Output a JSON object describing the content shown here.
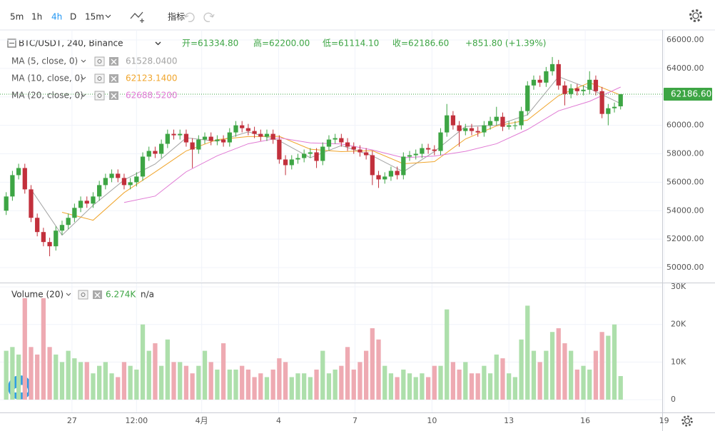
{
  "toolbar": {
    "intervals": [
      "5m",
      "1h",
      "4h",
      "D",
      "15m"
    ],
    "active_interval_index": 2,
    "indicators": "指标"
  },
  "chart_data": {
    "type": "candlestick",
    "title": "BTC/USDT, 240, Binance",
    "header_labels": [
      "开=61334.80",
      "高=62200.00",
      "低=61114.10",
      "收=62186.60",
      "+851.80 (+1.39%)"
    ],
    "xlim": [
      -1,
      105.7
    ],
    "xticks": [
      {
        "value": 10.6,
        "label": "27"
      },
      {
        "value": 21,
        "label": "12:00"
      },
      {
        "value": 31.5,
        "label": "4月"
      },
      {
        "value": 43.9,
        "label": "4"
      },
      {
        "value": 56.2,
        "label": "7"
      },
      {
        "value": 68.6,
        "label": "10"
      },
      {
        "value": 81,
        "label": "13"
      },
      {
        "value": 93.3,
        "label": "16"
      },
      {
        "value": 106,
        "label": "19"
      }
    ],
    "ylim": [
      49000,
      66700
    ],
    "yticks": [
      {
        "value": 50000,
        "label": "50000.00"
      },
      {
        "value": 52000,
        "label": "52000.00"
      },
      {
        "value": 54000,
        "label": "54000.00"
      },
      {
        "value": 56000,
        "label": "56000.00"
      },
      {
        "value": 58000,
        "label": "58000.00"
      },
      {
        "value": 60000,
        "label": "60000.00"
      },
      {
        "value": 62000,
        "label": "62000.00"
      },
      {
        "value": 64000,
        "label": "64000.00"
      },
      {
        "value": 66000,
        "label": "66000.00"
      }
    ],
    "grid": true,
    "up_color": "#3da544",
    "down_color": "#c2303c",
    "candles": [
      [
        54000,
        55300,
        53700,
        55000
      ],
      [
        55000,
        56800,
        54700,
        56500
      ],
      [
        56500,
        57300,
        56200,
        57000
      ],
      [
        57000,
        57300,
        55200,
        55500
      ],
      [
        55500,
        55800,
        53200,
        53500
      ],
      [
        53500,
        53800,
        52200,
        52500
      ],
      [
        52500,
        52800,
        51500,
        51800
      ],
      [
        51800,
        52100,
        50800,
        51500
      ],
      [
        51500,
        52900,
        51200,
        52600
      ],
      [
        52600,
        53300,
        52300,
        53000
      ],
      [
        53000,
        53800,
        52700,
        53500
      ],
      [
        53500,
        54500,
        53200,
        54200
      ],
      [
        54200,
        55000,
        53900,
        54700
      ],
      [
        54700,
        55000,
        54200,
        54500
      ],
      [
        54500,
        55300,
        54200,
        55000
      ],
      [
        55000,
        56100,
        54700,
        55800
      ],
      [
        55800,
        56600,
        55500,
        56300
      ],
      [
        56300,
        56900,
        56000,
        56600
      ],
      [
        56600,
        56900,
        56000,
        56300
      ],
      [
        56300,
        56600,
        55500,
        55800
      ],
      [
        55800,
        56300,
        55500,
        56000
      ],
      [
        56000,
        56700,
        55700,
        56400
      ],
      [
        56400,
        58100,
        56100,
        57800
      ],
      [
        57800,
        58500,
        57500,
        58200
      ],
      [
        58200,
        58500,
        57700,
        58000
      ],
      [
        58000,
        59000,
        57700,
        58700
      ],
      [
        58700,
        59700,
        58400,
        59400
      ],
      [
        59400,
        59700,
        59000,
        59300
      ],
      [
        59300,
        59700,
        59000,
        59400
      ],
      [
        59400,
        59700,
        58500,
        58800
      ],
      [
        58800,
        59100,
        57000,
        58300
      ],
      [
        58300,
        59300,
        58000,
        59000
      ],
      [
        59000,
        59500,
        58700,
        59200
      ],
      [
        59200,
        59500,
        58600,
        58900
      ],
      [
        58900,
        59300,
        58600,
        59000
      ],
      [
        59000,
        59300,
        58500,
        58800
      ],
      [
        58800,
        59800,
        58500,
        59500
      ],
      [
        59500,
        60300,
        59200,
        60000
      ],
      [
        60000,
        60300,
        59500,
        59800
      ],
      [
        59800,
        60100,
        59300,
        59600
      ],
      [
        59600,
        59900,
        59100,
        59400
      ],
      [
        59400,
        59700,
        58900,
        59200
      ],
      [
        59200,
        59700,
        58900,
        59400
      ],
      [
        59400,
        59700,
        58700,
        59000
      ],
      [
        59000,
        59300,
        57300,
        57600
      ],
      [
        57600,
        57900,
        56500,
        57200
      ],
      [
        57200,
        57900,
        56900,
        57600
      ],
      [
        57600,
        58000,
        57300,
        57700
      ],
      [
        57700,
        58300,
        57400,
        58000
      ],
      [
        58000,
        58400,
        57700,
        58100
      ],
      [
        58100,
        58400,
        57000,
        57500
      ],
      [
        57500,
        58800,
        57200,
        58500
      ],
      [
        58500,
        59300,
        58200,
        59000
      ],
      [
        59000,
        59400,
        58700,
        59100
      ],
      [
        59100,
        59400,
        58500,
        58800
      ],
      [
        58800,
        59100,
        58200,
        58500
      ],
      [
        58500,
        58800,
        58000,
        58300
      ],
      [
        58300,
        58600,
        57800,
        58100
      ],
      [
        58100,
        58400,
        57600,
        57900
      ],
      [
        57900,
        58200,
        55800,
        56500
      ],
      [
        56500,
        56800,
        55600,
        56200
      ],
      [
        56200,
        56700,
        55900,
        56400
      ],
      [
        56400,
        57100,
        56100,
        56800
      ],
      [
        56800,
        57100,
        56200,
        56500
      ],
      [
        56500,
        58100,
        56200,
        57800
      ],
      [
        57800,
        58200,
        57500,
        57900
      ],
      [
        57900,
        58300,
        57600,
        58000
      ],
      [
        58000,
        58700,
        57700,
        58400
      ],
      [
        58400,
        58700,
        58000,
        58300
      ],
      [
        58300,
        58600,
        57900,
        58200
      ],
      [
        58200,
        59800,
        57900,
        59500
      ],
      [
        59500,
        61500,
        59200,
        60700
      ],
      [
        60700,
        61000,
        59700,
        60000
      ],
      [
        60000,
        60300,
        58500,
        59600
      ],
      [
        59600,
        60100,
        59300,
        59800
      ],
      [
        59800,
        60100,
        59300,
        59600
      ],
      [
        59600,
        59900,
        59200,
        59500
      ],
      [
        59500,
        60300,
        59200,
        60000
      ],
      [
        60000,
        60600,
        59700,
        60300
      ],
      [
        60300,
        61300,
        60000,
        60600
      ],
      [
        60600,
        60900,
        59600,
        59900
      ],
      [
        59900,
        60300,
        59700,
        60000
      ],
      [
        60000,
        60300,
        59700,
        60000
      ],
      [
        60000,
        61300,
        59700,
        61000
      ],
      [
        61000,
        63100,
        60700,
        62800
      ],
      [
        62800,
        63500,
        62500,
        63200
      ],
      [
        63200,
        63500,
        62700,
        63000
      ],
      [
        63000,
        64100,
        62700,
        63800
      ],
      [
        63800,
        64800,
        63500,
        64300
      ],
      [
        64300,
        64600,
        62500,
        62800
      ],
      [
        62800,
        63100,
        61400,
        62200
      ],
      [
        62200,
        62900,
        61900,
        62600
      ],
      [
        62600,
        62900,
        62100,
        62400
      ],
      [
        62400,
        62800,
        62100,
        62500
      ],
      [
        62500,
        63800,
        62200,
        63200
      ],
      [
        63200,
        63500,
        62100,
        62400
      ],
      [
        62400,
        62700,
        60500,
        60800
      ],
      [
        60800,
        61500,
        60000,
        61200
      ],
      [
        61200,
        61600,
        60900,
        61300
      ],
      [
        61334.8,
        62200,
        61114.1,
        62186.6
      ]
    ],
    "series": [
      {
        "name": "MA (5, close, 0)",
        "color": "#a3a3a3",
        "value_label": "61528.0400",
        "x": [
          4,
          9,
          14,
          19,
          24,
          29,
          34,
          39,
          44,
          49,
          54,
          59,
          64,
          69,
          74,
          79,
          84,
          89,
          94,
          99
        ],
        "values": [
          55500,
          52280,
          54380,
          56160,
          57280,
          59120,
          58880,
          59540,
          58920,
          57720,
          58580,
          57860,
          56740,
          58160,
          59920,
          60000,
          60740,
          63420,
          62580,
          61528.04
        ]
      },
      {
        "name": "MA (10, close, 0)",
        "color": "#f0a52c",
        "value_label": "62123.1400",
        "x": [
          9,
          14,
          19,
          24,
          29,
          34,
          39,
          44,
          49,
          54,
          59,
          64,
          69,
          74,
          79,
          84,
          89,
          94,
          99
        ],
        "values": [
          53890,
          53330,
          55270,
          56720,
          58200,
          59000,
          59210,
          59230,
          58320,
          58150,
          58220,
          57300,
          57450,
          59040,
          59960,
          60370,
          62080,
          63000,
          62123.14
        ]
      },
      {
        "name": "MA (20, close, 0)",
        "color": "#e07ad4",
        "value_label": "62688.5200",
        "x": [
          19,
          24,
          29,
          34,
          39,
          44,
          49,
          54,
          59,
          64,
          69,
          74,
          79,
          84,
          89,
          94,
          99
        ],
        "values": [
          54580,
          55025,
          56735,
          57860,
          58705,
          59120,
          58765,
          58690,
          58270,
          57725,
          57835,
          58170,
          58705,
          59705,
          61020,
          61685,
          62688.52
        ]
      }
    ],
    "last_price_label": "62186.60",
    "volume": {
      "name": "Volume (20)",
      "value_label": "6.274K",
      "extra_label": "n/a",
      "up_color": "#addfab",
      "down_color": "#eeaab2",
      "ylim": [
        -3400,
        30950
      ],
      "yticks": [
        0,
        {
          "value": 10000,
          "label": "10K"
        },
        {
          "value": 20000,
          "label": "20K"
        },
        {
          "value": 30000,
          "label": "30K"
        }
      ],
      "values": [
        13000,
        14000,
        12000,
        27000,
        14000,
        12000,
        27000,
        14000,
        12000,
        10000,
        13000,
        11000,
        10000,
        10000,
        7000,
        9000,
        10000,
        7000,
        6000,
        10000,
        9000,
        8000,
        20000,
        13000,
        15000,
        9000,
        16000,
        10000,
        10000,
        9000,
        7000,
        9000,
        13000,
        10000,
        8000,
        15000,
        8000,
        8000,
        9000,
        8000,
        6000,
        7000,
        6000,
        8000,
        11000,
        10000,
        6000,
        7000,
        7000,
        6000,
        8000,
        13000,
        7000,
        8000,
        9000,
        14000,
        8000,
        10000,
        13000,
        19000,
        16000,
        9000,
        7000,
        6000,
        8000,
        7000,
        6000,
        7000,
        6000,
        9000,
        9000,
        24000,
        10000,
        8000,
        10000,
        7000,
        7000,
        9000,
        7000,
        12000,
        11000,
        7000,
        6000,
        16000,
        25000,
        13000,
        10000,
        13000,
        18000,
        19000,
        15000,
        13000,
        8000,
        9000,
        8000,
        13000,
        18000,
        17000,
        20000,
        6274
      ]
    }
  }
}
